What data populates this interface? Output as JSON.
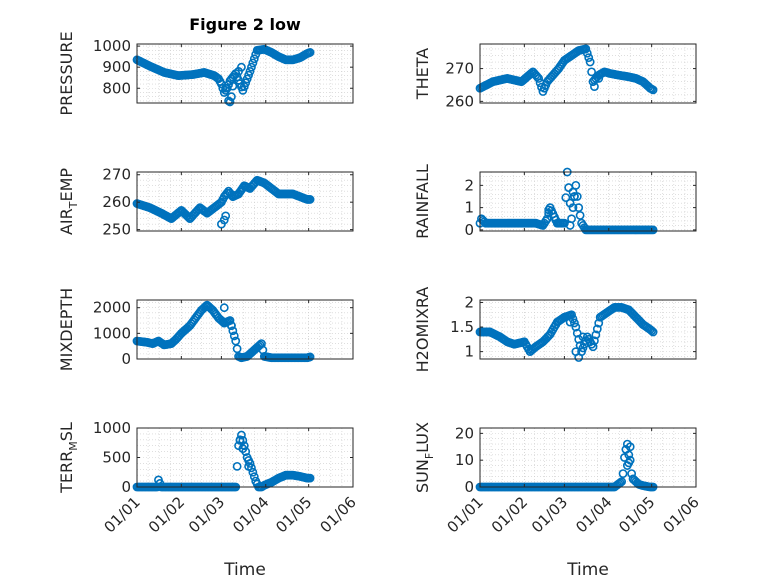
{
  "figure": {
    "title": "Figure 2 low"
  },
  "chart_data": [
    {
      "type": "scatter",
      "ylabel": "PRESSURE",
      "yticks": [
        "800",
        "900",
        "1000"
      ],
      "ytick_values": [
        800,
        900,
        1000
      ],
      "ylim": [
        730,
        1010
      ],
      "xticks": [
        "01/01",
        "01/02",
        "01/03",
        "01/04",
        "01/05",
        "01/06"
      ],
      "xtick_values": [
        1,
        32,
        60,
        91,
        121,
        152
      ],
      "xlim": [
        1,
        152
      ],
      "grid": true,
      "show_xticks": false,
      "title": "Figure 2 low",
      "keys_x": [
        1,
        10,
        20,
        30,
        40,
        48,
        55,
        58,
        60,
        62,
        64,
        66,
        70,
        75,
        80,
        85,
        90,
        95,
        100,
        105,
        110,
        115,
        120,
        122
      ],
      "keys_y": [
        935,
        905,
        875,
        860,
        865,
        875,
        860,
        845,
        820,
        780,
        800,
        835,
        870,
        790,
        880,
        980,
        985,
        970,
        950,
        935,
        935,
        945,
        965,
        970
      ],
      "outliers": [
        [
          65,
          740
        ],
        [
          66,
          735
        ],
        [
          67,
          760
        ],
        [
          63,
          800
        ],
        [
          68,
          810
        ],
        [
          72,
          880
        ],
        [
          74,
          900
        ]
      ]
    },
    {
      "type": "scatter",
      "ylabel": "THETA",
      "yticks": [
        "260",
        "270"
      ],
      "ytick_values": [
        260,
        270
      ],
      "ylim": [
        259.5,
        277.5
      ],
      "xlim": [
        1,
        152
      ],
      "grid": true,
      "show_xticks": false,
      "keys_x": [
        1,
        10,
        20,
        30,
        38,
        42,
        45,
        48,
        52,
        56,
        60,
        65,
        70,
        75,
        78,
        80,
        82,
        84,
        88,
        92,
        98,
        105,
        110,
        115,
        120,
        122
      ],
      "keys_y": [
        264,
        266,
        267,
        266,
        269,
        267,
        263,
        266,
        268,
        270,
        272.5,
        274,
        275.5,
        276,
        272,
        266,
        267,
        268,
        269,
        268.5,
        268,
        267.5,
        267,
        266,
        264,
        263.5
      ],
      "outliers": [
        [
          81,
          264.5
        ],
        [
          84,
          267
        ]
      ]
    },
    {
      "type": "scatter",
      "ylabel": "AIR_TEMP",
      "ylabel_main": "AIR",
      "ylabel_sub": "T",
      "ylabel_rest": "EMP",
      "yticks": [
        "250",
        "260",
        "270"
      ],
      "ytick_values": [
        250,
        260,
        270
      ],
      "ylim": [
        249.5,
        271
      ],
      "xlim": [
        1,
        152
      ],
      "grid": true,
      "show_xticks": false,
      "keys_x": [
        1,
        10,
        18,
        25,
        32,
        38,
        45,
        50,
        55,
        60,
        62,
        65,
        68,
        72,
        76,
        80,
        85,
        90,
        95,
        100,
        105,
        110,
        115,
        120,
        122
      ],
      "keys_y": [
        259.5,
        258,
        256,
        254,
        257,
        254,
        258,
        256,
        258,
        260,
        262,
        264,
        262,
        263,
        266,
        265,
        268,
        267,
        265,
        263,
        263,
        263,
        262,
        261,
        261
      ],
      "outliers": [
        [
          60,
          252
        ],
        [
          62,
          253.5
        ],
        [
          63,
          255
        ]
      ]
    },
    {
      "type": "scatter",
      "ylabel": "RAINFALL",
      "yticks": [
        "0",
        "1",
        "2"
      ],
      "ytick_values": [
        0,
        1,
        2
      ],
      "ylim": [
        -0.05,
        2.6
      ],
      "xlim": [
        1,
        152
      ],
      "grid": true,
      "show_xticks": false,
      "keys_x": [
        1,
        2,
        5,
        10,
        20,
        30,
        40,
        45,
        48,
        50,
        55,
        58,
        60,
        62,
        65,
        68,
        70,
        72,
        75,
        80,
        85,
        90,
        100,
        110,
        120,
        122
      ],
      "keys_y": [
        0.3,
        0.5,
        0.3,
        0.3,
        0.3,
        0.3,
        0.3,
        0.2,
        0.5,
        1.0,
        0.3,
        0.3,
        0.3,
        2.6,
        0.5,
        2.0,
        1.0,
        0.3,
        0,
        0,
        0,
        0,
        0,
        0,
        0,
        0
      ],
      "outliers": [
        [
          49,
          0.9
        ],
        [
          66,
          1.7
        ],
        [
          67,
          1.5
        ],
        [
          64,
          0.2
        ]
      ]
    },
    {
      "type": "scatter",
      "ylabel": "MIXDEPTH",
      "yticks": [
        "0",
        "1000",
        "2000"
      ],
      "ytick_values": [
        0,
        1000,
        2000
      ],
      "ylim": [
        0,
        2300
      ],
      "xlim": [
        1,
        152
      ],
      "grid": true,
      "show_xticks": false,
      "keys_x": [
        1,
        8,
        12,
        16,
        20,
        25,
        28,
        32,
        38,
        42,
        46,
        50,
        54,
        58,
        62,
        66,
        68,
        70,
        72,
        74,
        78,
        82,
        86,
        88,
        90,
        95,
        100,
        110,
        120,
        122
      ],
      "keys_y": [
        700,
        650,
        600,
        700,
        550,
        600,
        750,
        1000,
        1300,
        1600,
        1900,
        2100,
        1900,
        1600,
        1400,
        1500,
        1100,
        700,
        100,
        50,
        100,
        300,
        500,
        600,
        100,
        50,
        50,
        50,
        50,
        80
      ],
      "outliers": [
        [
          67,
          1300
        ],
        [
          62,
          2000
        ]
      ]
    },
    {
      "type": "scatter",
      "ylabel": "H2OMIXRA",
      "yticks": [
        "1",
        "1.5",
        "2"
      ],
      "ytick_values": [
        1,
        1.5,
        2
      ],
      "ylim": [
        0.85,
        2.05
      ],
      "xlim": [
        1,
        152
      ],
      "grid": true,
      "show_xticks": false,
      "keys_x": [
        1,
        8,
        15,
        20,
        25,
        32,
        36,
        40,
        45,
        50,
        55,
        60,
        65,
        68,
        72,
        76,
        80,
        85,
        90,
        95,
        100,
        105,
        110,
        115,
        120,
        122
      ],
      "keys_y": [
        1.4,
        1.4,
        1.3,
        1.2,
        1.15,
        1.2,
        1.0,
        1.1,
        1.2,
        1.35,
        1.6,
        1.7,
        1.75,
        1.5,
        1.0,
        1.3,
        1.1,
        1.7,
        1.8,
        1.9,
        1.9,
        1.85,
        1.7,
        1.55,
        1.45,
        1.4
      ],
      "outliers": [
        [
          70,
          0.88
        ],
        [
          68,
          1.0
        ],
        [
          73,
          1.3
        ],
        [
          64,
          1.6
        ]
      ]
    },
    {
      "type": "scatter",
      "ylabel": "TERR_MSL",
      "ylabel_main": "TERR",
      "ylabel_sub": "M",
      "ylabel_rest": "SL",
      "yticks": [
        "0",
        "500",
        "1000"
      ],
      "ytick_values": [
        0,
        500,
        1000
      ],
      "ylim": [
        0,
        1000
      ],
      "xlim": [
        1,
        152
      ],
      "grid": true,
      "show_xticks": true,
      "keys_x": [
        1,
        10,
        15,
        16,
        18,
        20,
        30,
        40,
        50,
        60,
        70,
        72,
        74,
        76,
        78,
        80,
        82,
        84,
        86,
        88,
        90,
        95,
        100,
        105,
        110,
        115,
        120,
        122
      ],
      "keys_y": [
        0,
        0,
        0,
        120,
        0,
        0,
        0,
        0,
        0,
        0,
        0,
        700,
        880,
        700,
        500,
        400,
        250,
        100,
        0,
        0,
        30,
        80,
        150,
        200,
        200,
        180,
        150,
        150
      ],
      "outliers": [
        [
          73,
          800
        ],
        [
          75,
          650
        ],
        [
          79,
          350
        ]
      ]
    },
    {
      "type": "scatter",
      "ylabel": "SUN_FLUX",
      "ylabel_main": "SUN",
      "ylabel_sub": "F",
      "ylabel_rest": "LUX",
      "yticks": [
        "0",
        "10",
        "20"
      ],
      "ytick_values": [
        0,
        10,
        20
      ],
      "ylim": [
        0,
        22
      ],
      "xlim": [
        1,
        152
      ],
      "grid": true,
      "show_xticks": true,
      "keys_x": [
        1,
        20,
        40,
        60,
        80,
        95,
        100,
        101,
        102,
        103,
        104,
        105,
        106,
        107,
        108,
        110,
        112,
        115,
        120,
        122
      ],
      "keys_y": [
        0,
        0,
        0,
        0,
        0,
        0,
        2,
        5,
        11,
        14,
        16,
        12,
        10,
        5,
        3,
        2,
        1,
        0.5,
        0,
        0
      ],
      "outliers": [
        [
          104,
          8
        ],
        [
          105,
          9
        ],
        [
          106,
          15
        ]
      ]
    }
  ],
  "xaxis": {
    "label": "Time"
  },
  "colors": {
    "marker": "#0072bd",
    "frame": "#262626",
    "grid": "#cccccc"
  }
}
